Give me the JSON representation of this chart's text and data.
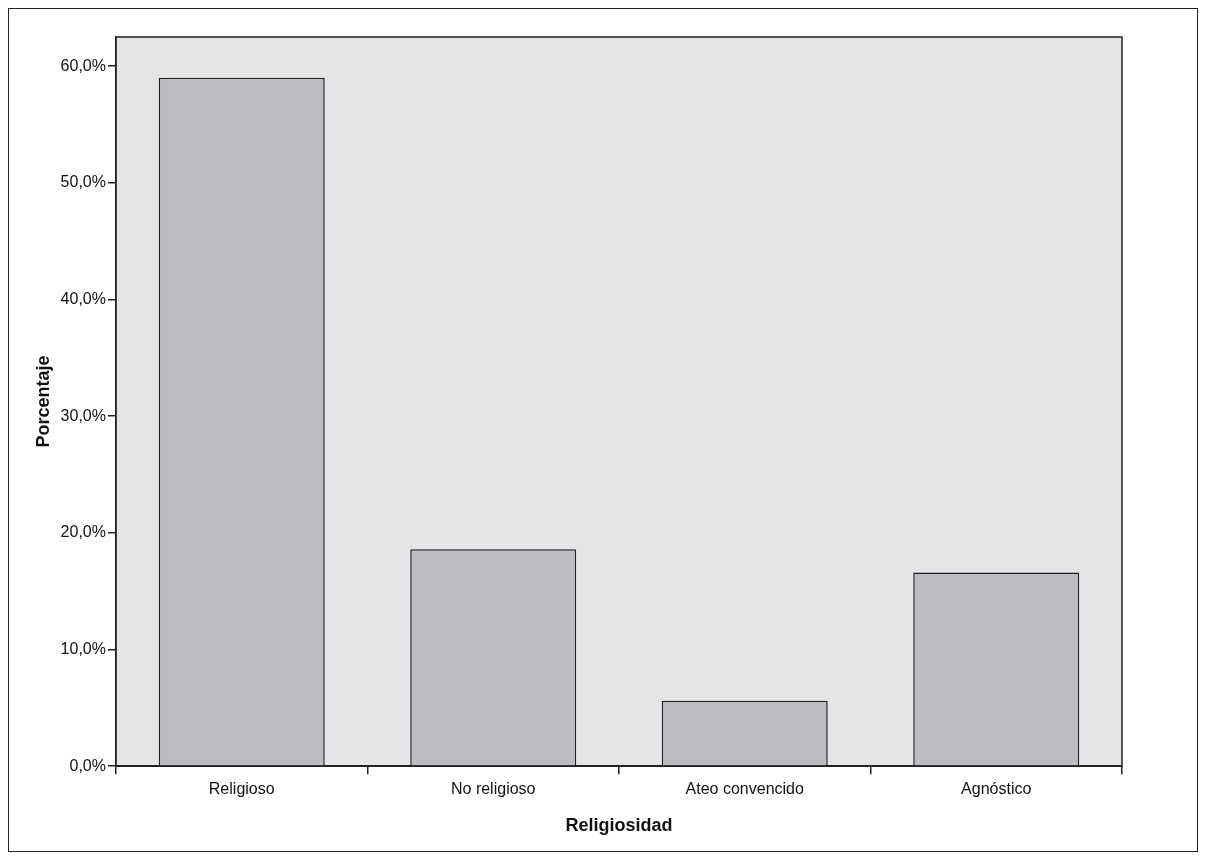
{
  "chart_data": {
    "type": "bar",
    "xlabel": "Religiosidad",
    "ylabel": "Porcentaje",
    "categories": [
      "Religioso",
      "No religioso",
      "Ateo convencido",
      "Agnóstico"
    ],
    "values": [
      59.0,
      18.6,
      5.6,
      16.6
    ],
    "color": "#bcbdc1",
    "ylim": [
      0,
      62.5
    ],
    "yticks": [
      {
        "value": 0,
        "label": "0,0%"
      },
      {
        "value": 10,
        "label": "10,0%"
      },
      {
        "value": 20,
        "label": "20,0%"
      },
      {
        "value": 30,
        "label": "30,0%"
      },
      {
        "value": 40,
        "label": "40,0%"
      },
      {
        "value": 50,
        "label": "50,0%"
      },
      {
        "value": 60,
        "label": "60,0%"
      }
    ],
    "grid": false,
    "legend": false
  }
}
